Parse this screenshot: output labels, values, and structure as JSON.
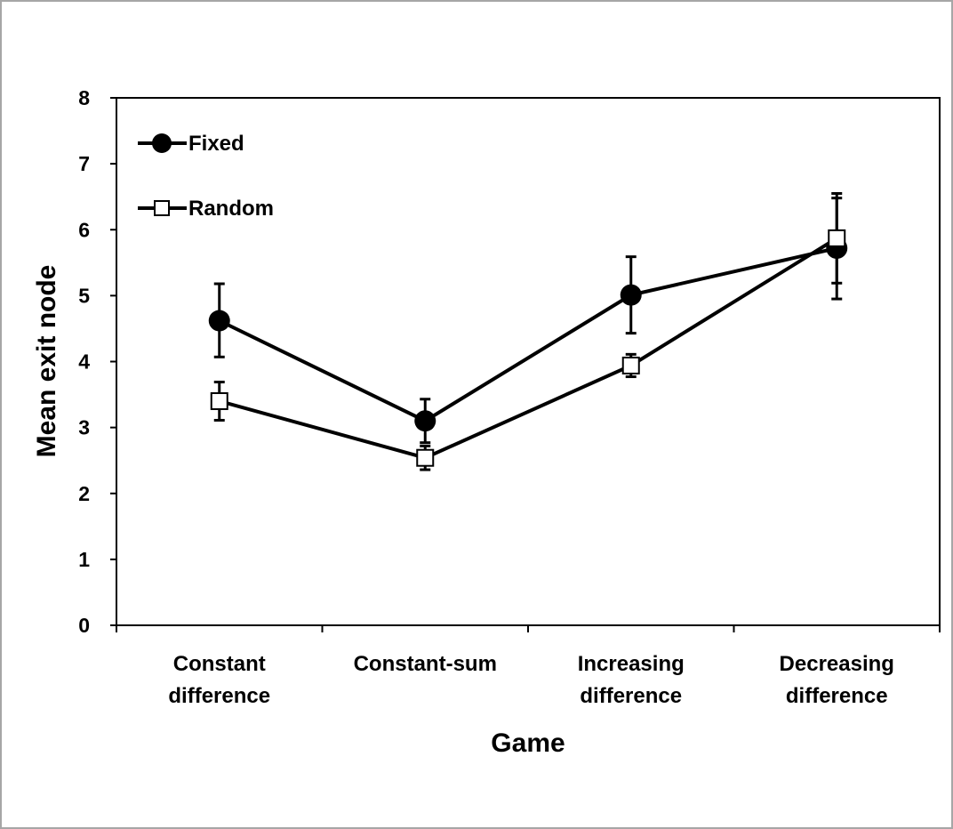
{
  "chart_data": {
    "type": "line",
    "title": "",
    "xlabel": "Game",
    "ylabel": "Mean exit node",
    "ylim": [
      0,
      8
    ],
    "yticks": [
      "0",
      "1",
      "2",
      "3",
      "4",
      "5",
      "6",
      "7",
      "8"
    ],
    "categories": [
      [
        "Constant",
        "difference"
      ],
      [
        "Constant-sum"
      ],
      [
        "Increasing",
        "difference"
      ],
      [
        "Decreasing",
        "difference"
      ]
    ],
    "grid": false,
    "legend_position": "top-left",
    "series": [
      {
        "name": "Fixed",
        "marker": "filled-circle",
        "values": [
          4.62,
          3.1,
          5.01,
          5.72
        ],
        "error_low": [
          4.07,
          2.77,
          4.43,
          4.95
        ],
        "error_high": [
          5.18,
          3.43,
          5.59,
          6.48
        ]
      },
      {
        "name": "Random",
        "marker": "open-square",
        "values": [
          3.4,
          2.54,
          3.94,
          5.87
        ],
        "error_low": [
          3.11,
          2.36,
          3.77,
          5.19
        ],
        "error_high": [
          3.69,
          2.72,
          4.11,
          6.55
        ]
      }
    ],
    "colors": {
      "line": "#000000",
      "fill_open": "#ffffff",
      "border": "#a6a6a6"
    }
  }
}
